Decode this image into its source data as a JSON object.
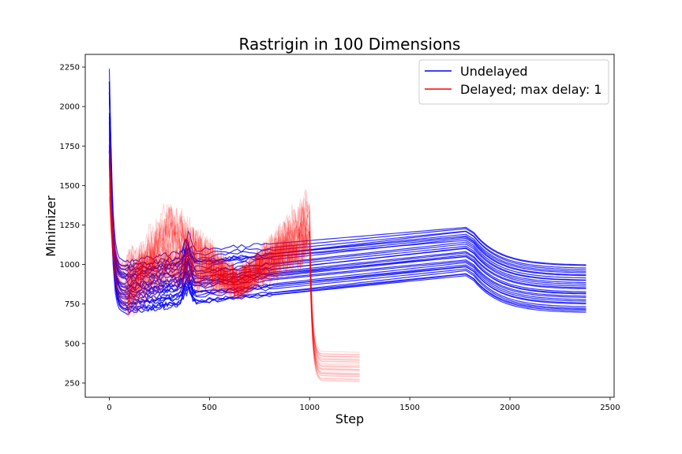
{
  "chart_data": {
    "type": "line",
    "title": "Rastrigin in 100 Dimensions",
    "xlabel": "Step",
    "ylabel": "Minimizer",
    "xlim": [
      -120,
      2520
    ],
    "ylim": [
      160,
      2330
    ],
    "xticks": [
      0,
      500,
      1000,
      1500,
      2000,
      2500
    ],
    "yticks": [
      250,
      500,
      750,
      1000,
      1250,
      1500,
      1750,
      2000,
      2250
    ],
    "grid": false,
    "legend_position": "top-right",
    "colors": {
      "undelayed": "#0000ff",
      "delayed": "#ff0000",
      "axis": "#000000"
    },
    "series": [
      {
        "name": "Undelayed",
        "color": "#0000ff",
        "run_count": 30,
        "x_range": [
          0,
          2385
        ],
        "peak": 2240,
        "dip_step": 60,
        "dip_range": [
          690,
          1010
        ],
        "bump_step": 390,
        "ramp_end_step": 1800,
        "ramp_end_range": [
          930,
          1240
        ],
        "final_range": [
          690,
          1000
        ]
      },
      {
        "name": "Delayed; max delay: 1",
        "color": "#ff0000",
        "run_count": 30,
        "x_range": [
          0,
          1250
        ],
        "peak": 1900,
        "noisy_range": [
          700,
          1500
        ],
        "pre_drop_step": 1000,
        "pre_drop_range": [
          1050,
          1400
        ],
        "final_range": [
          260,
          440
        ]
      }
    ]
  }
}
